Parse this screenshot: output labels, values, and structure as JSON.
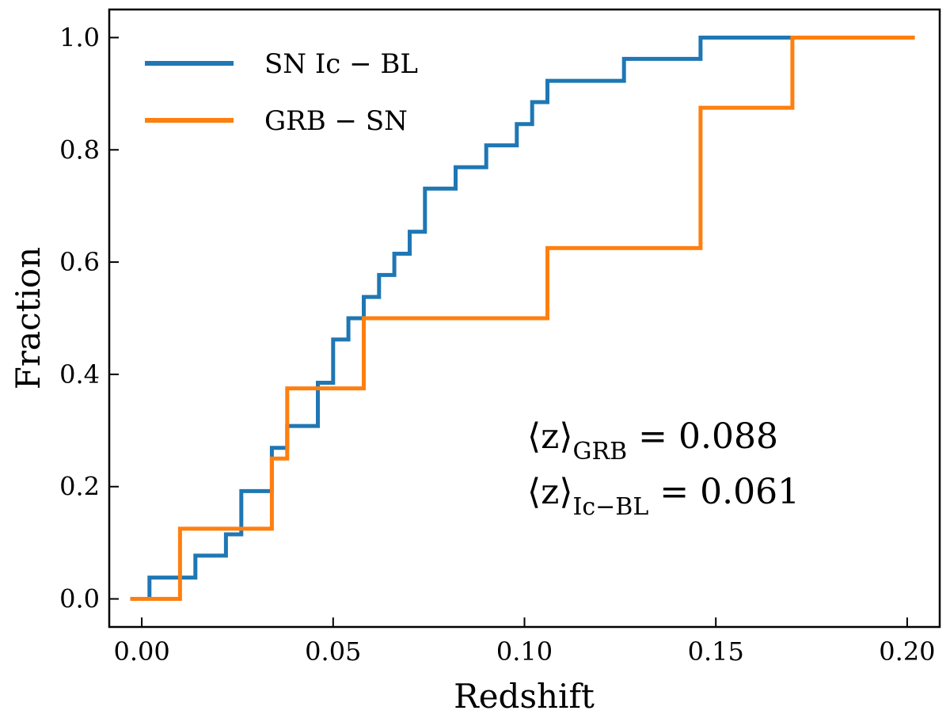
{
  "chart_data": {
    "type": "line",
    "step": "post",
    "xlabel": "Redshift",
    "ylabel": "Fraction",
    "xlim": [
      -0.0085,
      0.2085
    ],
    "ylim": [
      -0.05,
      1.05
    ],
    "xticks": [
      0.0,
      0.05,
      0.1,
      0.15,
      0.2
    ],
    "xtick_labels": [
      "0.00",
      "0.05",
      "0.10",
      "0.15",
      "0.20"
    ],
    "yticks": [
      0.0,
      0.2,
      0.4,
      0.6,
      0.8,
      1.0
    ],
    "ytick_labels": [
      "0.0",
      "0.2",
      "0.4",
      "0.6",
      "0.8",
      "1.0"
    ],
    "grid": false,
    "legend_position": "top-left",
    "series": [
      {
        "name": "SN Ic − BL",
        "color": "#1f77b4",
        "x": [
          -0.003,
          0.002,
          0.002,
          0.014,
          0.014,
          0.022,
          0.022,
          0.026,
          0.026,
          0.034,
          0.034,
          0.038,
          0.038,
          0.046,
          0.046,
          0.05,
          0.05,
          0.054,
          0.054,
          0.058,
          0.058,
          0.062,
          0.062,
          0.066,
          0.066,
          0.07,
          0.07,
          0.074,
          0.074,
          0.082,
          0.082,
          0.09,
          0.09,
          0.098,
          0.098,
          0.102,
          0.102,
          0.106,
          0.106,
          0.126,
          0.126,
          0.146,
          0.146,
          0.17
        ],
        "y": [
          0.0,
          0.0,
          0.038,
          0.038,
          0.077,
          0.077,
          0.115,
          0.115,
          0.192,
          0.192,
          0.269,
          0.269,
          0.308,
          0.308,
          0.385,
          0.385,
          0.462,
          0.462,
          0.5,
          0.5,
          0.538,
          0.538,
          0.577,
          0.577,
          0.615,
          0.615,
          0.654,
          0.654,
          0.731,
          0.731,
          0.769,
          0.769,
          0.808,
          0.808,
          0.846,
          0.846,
          0.885,
          0.885,
          0.923,
          0.923,
          0.962,
          0.962,
          1.0,
          1.0
        ]
      },
      {
        "name": "GRB − SN",
        "color": "#ff7f0e",
        "x": [
          -0.003,
          0.01,
          0.01,
          0.034,
          0.034,
          0.038,
          0.038,
          0.058,
          0.058,
          0.106,
          0.106,
          0.146,
          0.146,
          0.17,
          0.17,
          0.202
        ],
        "y": [
          0.0,
          0.0,
          0.125,
          0.125,
          0.25,
          0.25,
          0.375,
          0.375,
          0.5,
          0.5,
          0.625,
          0.625,
          0.875,
          0.875,
          1.0,
          1.0
        ]
      }
    ],
    "annotations": [
      {
        "main": "⟨z⟩",
        "sub": "GRB",
        "value": "= 0.088"
      },
      {
        "main": "⟨z⟩",
        "sub": "Ic−BL",
        "value": "= 0.061"
      }
    ]
  }
}
